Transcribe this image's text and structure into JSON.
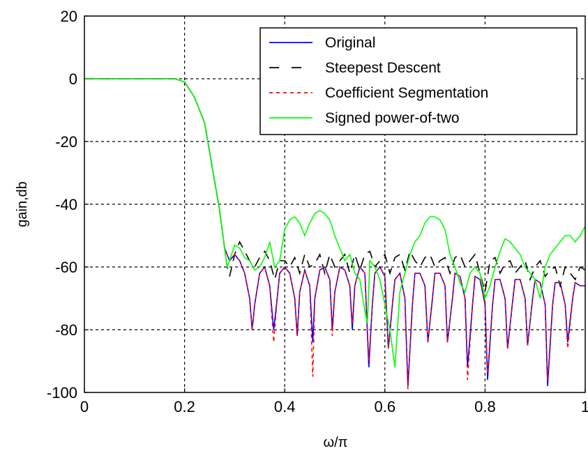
{
  "chart_data": {
    "type": "line",
    "title": "",
    "xlabel": "ω/π",
    "ylabel": "gain,db",
    "xlim": [
      0,
      1
    ],
    "ylim": [
      -100,
      20
    ],
    "x_ticks": [
      0,
      0.2,
      0.4,
      0.6,
      0.8,
      1
    ],
    "x_tick_labels": [
      "0",
      "0.2",
      "0.4",
      "0.6",
      "0.8",
      "1"
    ],
    "y_ticks": [
      20,
      0,
      -20,
      -40,
      -60,
      -80,
      -100
    ],
    "y_tick_labels": [
      "20",
      "0",
      "-20",
      "-40",
      "-60",
      "-80",
      "-100"
    ],
    "grid": true,
    "legend_position": "top-right",
    "series": [
      {
        "name": "Original",
        "color": "#0000ff",
        "dash": "solid",
        "x": [
          0,
          0.05,
          0.1,
          0.15,
          0.18,
          0.2,
          0.22,
          0.24,
          0.255,
          0.27,
          0.28,
          0.29,
          0.3,
          0.31,
          0.32,
          0.33,
          0.335,
          0.34,
          0.35,
          0.36,
          0.37,
          0.378,
          0.385,
          0.39,
          0.4,
          0.41,
          0.42,
          0.425,
          0.43,
          0.44,
          0.45,
          0.456,
          0.46,
          0.47,
          0.48,
          0.49,
          0.495,
          0.5,
          0.51,
          0.52,
          0.53,
          0.535,
          0.54,
          0.55,
          0.56,
          0.568,
          0.575,
          0.58,
          0.59,
          0.6,
          0.607,
          0.615,
          0.62,
          0.63,
          0.64,
          0.646,
          0.655,
          0.66,
          0.67,
          0.68,
          0.686,
          0.695,
          0.7,
          0.71,
          0.72,
          0.725,
          0.735,
          0.74,
          0.75,
          0.76,
          0.765,
          0.775,
          0.78,
          0.79,
          0.8,
          0.805,
          0.815,
          0.82,
          0.83,
          0.84,
          0.845,
          0.855,
          0.86,
          0.87,
          0.88,
          0.885,
          0.895,
          0.9,
          0.91,
          0.92,
          0.925,
          0.935,
          0.94,
          0.95,
          0.96,
          0.965,
          0.975,
          0.98,
          0.99,
          1.0
        ],
        "values": [
          0,
          0,
          0,
          0,
          0,
          -1,
          -6,
          -14,
          -28,
          -42,
          -54,
          -58,
          -56,
          -58,
          -62,
          -70,
          -80,
          -72,
          -62,
          -60,
          -66,
          -80,
          -70,
          -62,
          -60,
          -62,
          -70,
          -82,
          -68,
          -61,
          -66,
          -84,
          -70,
          -61,
          -60,
          -64,
          -80,
          -68,
          -60,
          -61,
          -66,
          -80,
          -66,
          -60,
          -62,
          -92,
          -72,
          -62,
          -60,
          -63,
          -86,
          -72,
          -64,
          -62,
          -70,
          -98,
          -72,
          -62,
          -62,
          -66,
          -84,
          -70,
          -62,
          -62,
          -66,
          -84,
          -70,
          -62,
          -63,
          -70,
          -92,
          -72,
          -63,
          -64,
          -72,
          -96,
          -72,
          -64,
          -64,
          -70,
          -86,
          -71,
          -64,
          -64,
          -70,
          -85,
          -70,
          -64,
          -65,
          -72,
          -98,
          -72,
          -65,
          -65,
          -72,
          -84,
          -70,
          -65,
          -66,
          -66
        ]
      },
      {
        "name": "Steepest Descent",
        "color": "#000000",
        "dash": "dashed",
        "x": [
          0,
          0.05,
          0.1,
          0.15,
          0.18,
          0.2,
          0.22,
          0.24,
          0.255,
          0.27,
          0.28,
          0.285,
          0.29,
          0.3,
          0.31,
          0.32,
          0.33,
          0.34,
          0.35,
          0.36,
          0.37,
          0.38,
          0.39,
          0.4,
          0.41,
          0.42,
          0.43,
          0.44,
          0.45,
          0.46,
          0.47,
          0.48,
          0.49,
          0.5,
          0.51,
          0.52,
          0.53,
          0.54,
          0.55,
          0.56,
          0.57,
          0.58,
          0.59,
          0.6,
          0.61,
          0.62,
          0.63,
          0.64,
          0.65,
          0.66,
          0.67,
          0.68,
          0.69,
          0.7,
          0.71,
          0.72,
          0.73,
          0.74,
          0.75,
          0.76,
          0.77,
          0.78,
          0.79,
          0.8,
          0.81,
          0.82,
          0.83,
          0.84,
          0.85,
          0.86,
          0.87,
          0.88,
          0.89,
          0.9,
          0.91,
          0.92,
          0.93,
          0.94,
          0.95,
          0.96,
          0.97,
          0.98,
          0.99,
          1.0
        ],
        "values": [
          0,
          0,
          0,
          0,
          0,
          -1,
          -6,
          -14,
          -28,
          -42,
          -54,
          -60,
          -63,
          -56,
          -52,
          -55,
          -58,
          -60,
          -57,
          -55,
          -58,
          -64,
          -58,
          -58,
          -60,
          -57,
          -62,
          -56,
          -60,
          -59,
          -56,
          -62,
          -56,
          -60,
          -58,
          -56,
          -62,
          -56,
          -61,
          -56,
          -55,
          -60,
          -58,
          -56,
          -62,
          -57,
          -56,
          -61,
          -55,
          -58,
          -60,
          -57,
          -56,
          -60,
          -58,
          -57,
          -62,
          -57,
          -56,
          -60,
          -58,
          -56,
          -62,
          -68,
          -58,
          -57,
          -62,
          -59,
          -58,
          -62,
          -60,
          -58,
          -64,
          -60,
          -58,
          -63,
          -61,
          -60,
          -66,
          -60,
          -62,
          -64,
          -60,
          -61
        ]
      },
      {
        "name": "Coefficient Segmentation",
        "color": "#ff0000",
        "dash": "dotted",
        "x": [
          0,
          0.05,
          0.1,
          0.15,
          0.18,
          0.2,
          0.22,
          0.24,
          0.255,
          0.27,
          0.28,
          0.29,
          0.3,
          0.31,
          0.32,
          0.33,
          0.335,
          0.34,
          0.35,
          0.36,
          0.37,
          0.378,
          0.385,
          0.39,
          0.4,
          0.41,
          0.42,
          0.425,
          0.43,
          0.44,
          0.45,
          0.456,
          0.46,
          0.47,
          0.48,
          0.49,
          0.495,
          0.5,
          0.51,
          0.52,
          0.53,
          0.535,
          0.54,
          0.55,
          0.56,
          0.568,
          0.575,
          0.58,
          0.59,
          0.6,
          0.607,
          0.615,
          0.62,
          0.63,
          0.64,
          0.646,
          0.655,
          0.66,
          0.67,
          0.68,
          0.686,
          0.695,
          0.7,
          0.71,
          0.72,
          0.725,
          0.735,
          0.74,
          0.75,
          0.76,
          0.765,
          0.775,
          0.78,
          0.79,
          0.8,
          0.805,
          0.815,
          0.82,
          0.83,
          0.84,
          0.845,
          0.855,
          0.86,
          0.87,
          0.88,
          0.885,
          0.895,
          0.9,
          0.91,
          0.92,
          0.925,
          0.935,
          0.94,
          0.95,
          0.96,
          0.965,
          0.975,
          0.98,
          0.99,
          1.0
        ],
        "values": [
          0,
          0,
          0,
          0,
          0,
          -1,
          -6,
          -14,
          -28,
          -42,
          -54,
          -58,
          -56,
          -58,
          -62,
          -70,
          -80,
          -72,
          -62,
          -60,
          -66,
          -84,
          -70,
          -62,
          -60,
          -62,
          -70,
          -82,
          -68,
          -61,
          -66,
          -95,
          -70,
          -61,
          -60,
          -64,
          -82,
          -68,
          -60,
          -61,
          -66,
          -78,
          -66,
          -60,
          -62,
          -90,
          -72,
          -62,
          -60,
          -63,
          -86,
          -72,
          -64,
          -62,
          -70,
          -99,
          -72,
          -62,
          -62,
          -66,
          -84,
          -70,
          -62,
          -62,
          -66,
          -84,
          -70,
          -62,
          -63,
          -70,
          -96,
          -72,
          -63,
          -64,
          -72,
          -94,
          -72,
          -64,
          -64,
          -70,
          -86,
          -71,
          -64,
          -64,
          -70,
          -85,
          -70,
          -64,
          -65,
          -72,
          -96,
          -72,
          -65,
          -65,
          -72,
          -86,
          -70,
          -65,
          -66,
          -66
        ]
      },
      {
        "name": "Signed power-of-two",
        "color": "#00ff00",
        "dash": "solid",
        "x": [
          0,
          0.05,
          0.1,
          0.15,
          0.18,
          0.2,
          0.22,
          0.24,
          0.255,
          0.27,
          0.28,
          0.285,
          0.29,
          0.3,
          0.31,
          0.32,
          0.33,
          0.34,
          0.35,
          0.36,
          0.37,
          0.38,
          0.39,
          0.4,
          0.41,
          0.42,
          0.43,
          0.44,
          0.45,
          0.46,
          0.47,
          0.48,
          0.49,
          0.5,
          0.51,
          0.52,
          0.53,
          0.54,
          0.55,
          0.56,
          0.565,
          0.57,
          0.58,
          0.59,
          0.6,
          0.61,
          0.62,
          0.63,
          0.64,
          0.65,
          0.66,
          0.67,
          0.68,
          0.69,
          0.7,
          0.71,
          0.72,
          0.73,
          0.74,
          0.75,
          0.76,
          0.77,
          0.78,
          0.79,
          0.8,
          0.81,
          0.82,
          0.83,
          0.84,
          0.85,
          0.86,
          0.87,
          0.88,
          0.89,
          0.9,
          0.91,
          0.92,
          0.93,
          0.94,
          0.95,
          0.96,
          0.97,
          0.98,
          0.99,
          1.0
        ],
        "values": [
          0,
          0,
          0,
          0,
          0,
          -1,
          -6,
          -14,
          -28,
          -42,
          -54,
          -60,
          -58,
          -53,
          -54,
          -57,
          -58,
          -61,
          -60,
          -57,
          -52,
          -60,
          -58,
          -48,
          -45,
          -44,
          -46,
          -50,
          -46,
          -43,
          -42,
          -43,
          -45,
          -50,
          -54,
          -58,
          -56,
          -62,
          -64,
          -74,
          -78,
          -58,
          -60,
          -64,
          -72,
          -80,
          -92,
          -68,
          -62,
          -56,
          -52,
          -50,
          -46,
          -44,
          -44,
          -45,
          -48,
          -56,
          -60,
          -65,
          -68,
          -62,
          -60,
          -62,
          -70,
          -66,
          -60,
          -55,
          -51,
          -52,
          -54,
          -56,
          -60,
          -62,
          -64,
          -70,
          -60,
          -56,
          -54,
          -52,
          -50,
          -50,
          -52,
          -50,
          -47
        ]
      }
    ]
  }
}
